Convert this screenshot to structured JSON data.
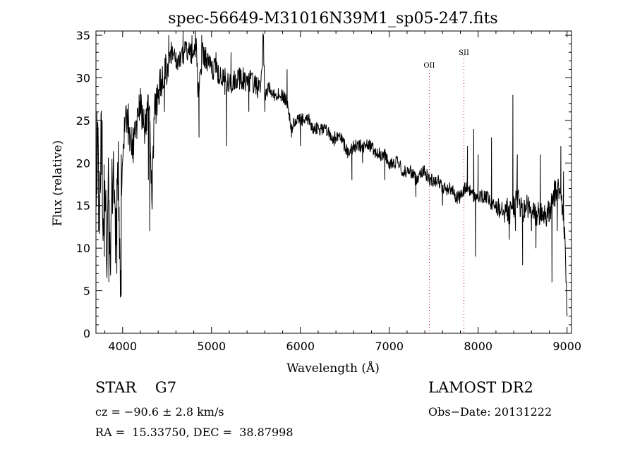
{
  "chart_data": {
    "type": "line",
    "title": "spec-56649-M31016N39M1_sp05-247.fits",
    "xlabel": "Wavelength (Å)",
    "ylabel": "Flux (relative)",
    "xlim": [
      3700,
      9050
    ],
    "ylim": [
      0,
      35.5
    ],
    "xticks": [
      4000,
      5000,
      6000,
      7000,
      8000,
      9000
    ],
    "yticks": [
      0,
      5,
      10,
      15,
      20,
      25,
      30,
      35
    ],
    "grid": false,
    "series": [
      {
        "color": "#000000",
        "anchors": [
          [
            3700,
            16
          ],
          [
            3720,
            22
          ],
          [
            3740,
            13
          ],
          [
            3760,
            25
          ],
          [
            3780,
            12
          ],
          [
            3800,
            19
          ],
          [
            3820,
            8
          ],
          [
            3840,
            18
          ],
          [
            3860,
            9
          ],
          [
            3880,
            17
          ],
          [
            3900,
            20
          ],
          [
            3920,
            12
          ],
          [
            3950,
            20
          ],
          [
            3980,
            5
          ],
          [
            4000,
            22
          ],
          [
            4030,
            25
          ],
          [
            4060,
            24
          ],
          [
            4100,
            22
          ],
          [
            4150,
            24
          ],
          [
            4200,
            27
          ],
          [
            4250,
            24
          ],
          [
            4300,
            27
          ],
          [
            4330,
            16
          ],
          [
            4360,
            26
          ],
          [
            4400,
            28
          ],
          [
            4450,
            30
          ],
          [
            4500,
            31
          ],
          [
            4550,
            33
          ],
          [
            4600,
            32
          ],
          [
            4650,
            32
          ],
          [
            4700,
            33
          ],
          [
            4750,
            33
          ],
          [
            4800,
            33
          ],
          [
            4830,
            34
          ],
          [
            4850,
            28
          ],
          [
            4900,
            33
          ],
          [
            4950,
            32
          ],
          [
            5000,
            31
          ],
          [
            5050,
            31
          ],
          [
            5100,
            30
          ],
          [
            5150,
            30
          ],
          [
            5200,
            29
          ],
          [
            5250,
            30
          ],
          [
            5300,
            30
          ],
          [
            5350,
            30
          ],
          [
            5400,
            29
          ],
          [
            5450,
            30
          ],
          [
            5500,
            29
          ],
          [
            5550,
            29
          ],
          [
            5580,
            34
          ],
          [
            5600,
            28
          ],
          [
            5650,
            29
          ],
          [
            5700,
            28
          ],
          [
            5750,
            28
          ],
          [
            5800,
            28
          ],
          [
            5850,
            27
          ],
          [
            5900,
            24
          ],
          [
            5950,
            25
          ],
          [
            6000,
            25
          ],
          [
            6050,
            25
          ],
          [
            6100,
            25
          ],
          [
            6150,
            24
          ],
          [
            6200,
            24
          ],
          [
            6250,
            24
          ],
          [
            6300,
            24
          ],
          [
            6350,
            23
          ],
          [
            6400,
            23
          ],
          [
            6450,
            23
          ],
          [
            6500,
            22
          ],
          [
            6550,
            21
          ],
          [
            6600,
            22
          ],
          [
            6650,
            22
          ],
          [
            6700,
            22
          ],
          [
            6750,
            22
          ],
          [
            6800,
            22
          ],
          [
            6850,
            21
          ],
          [
            6900,
            21
          ],
          [
            6950,
            21
          ],
          [
            7000,
            20
          ],
          [
            7050,
            20
          ],
          [
            7100,
            20
          ],
          [
            7150,
            19
          ],
          [
            7200,
            19
          ],
          [
            7250,
            19
          ],
          [
            7300,
            18
          ],
          [
            7350,
            19
          ],
          [
            7400,
            19
          ],
          [
            7450,
            18
          ],
          [
            7500,
            18
          ],
          [
            7550,
            18
          ],
          [
            7600,
            17
          ],
          [
            7650,
            17
          ],
          [
            7700,
            17
          ],
          [
            7750,
            16
          ],
          [
            7800,
            16
          ],
          [
            7850,
            17
          ],
          [
            7900,
            17
          ],
          [
            7950,
            16
          ],
          [
            8000,
            16
          ],
          [
            8050,
            16
          ],
          [
            8100,
            16
          ],
          [
            8150,
            15
          ],
          [
            8200,
            15
          ],
          [
            8250,
            15
          ],
          [
            8300,
            15
          ],
          [
            8350,
            14
          ],
          [
            8400,
            15
          ],
          [
            8450,
            16
          ],
          [
            8500,
            14
          ],
          [
            8550,
            15
          ],
          [
            8600,
            14
          ],
          [
            8650,
            14
          ],
          [
            8700,
            14
          ],
          [
            8750,
            14
          ],
          [
            8800,
            14
          ],
          [
            8850,
            16
          ],
          [
            8900,
            17
          ],
          [
            8950,
            15
          ],
          [
            8980,
            10
          ],
          [
            9000,
            3
          ]
        ],
        "spikes": [
          [
            3710,
            26
          ],
          [
            3730,
            12
          ],
          [
            3770,
            25
          ],
          [
            3795,
            9
          ],
          [
            3845,
            6
          ],
          [
            3885,
            14
          ],
          [
            3935,
            7
          ],
          [
            3975,
            4.2
          ],
          [
            3985,
            21
          ],
          [
            4065,
            27
          ],
          [
            4120,
            20
          ],
          [
            4185,
            28
          ],
          [
            4290,
            18
          ],
          [
            4305,
            12
          ],
          [
            4420,
            31
          ],
          [
            4470,
            26
          ],
          [
            4520,
            35
          ],
          [
            4600,
            33
          ],
          [
            4680,
            35.5
          ],
          [
            4720,
            34
          ],
          [
            4780,
            35
          ],
          [
            4820,
            35.5
          ],
          [
            4860,
            23
          ],
          [
            4890,
            35
          ],
          [
            5050,
            33
          ],
          [
            5150,
            28
          ],
          [
            5170,
            22
          ],
          [
            5220,
            33
          ],
          [
            5420,
            26
          ],
          [
            5585,
            35
          ],
          [
            5600,
            26
          ],
          [
            5850,
            31
          ],
          [
            5900,
            23
          ],
          [
            6000,
            22
          ],
          [
            6380,
            22
          ],
          [
            6580,
            18
          ],
          [
            6700,
            20
          ],
          [
            6950,
            18
          ],
          [
            7300,
            16
          ],
          [
            7600,
            15
          ],
          [
            7880,
            22
          ],
          [
            7950,
            24
          ],
          [
            7970,
            9
          ],
          [
            8000,
            21
          ],
          [
            8150,
            23
          ],
          [
            8300,
            13
          ],
          [
            8350,
            11
          ],
          [
            8390,
            28
          ],
          [
            8420,
            12
          ],
          [
            8440,
            21
          ],
          [
            8500,
            8
          ],
          [
            8600,
            12
          ],
          [
            8650,
            10
          ],
          [
            8700,
            21
          ],
          [
            8830,
            6
          ],
          [
            8860,
            18
          ],
          [
            8890,
            12
          ],
          [
            8930,
            22
          ],
          [
            8960,
            19
          ],
          [
            9000,
            2
          ]
        ]
      }
    ],
    "lines": [
      {
        "label": "OII",
        "x": 7450
      },
      {
        "label": "SII",
        "x": 7840
      }
    ]
  },
  "footer": {
    "class": "STAR    G7",
    "survey": "LAMOST DR2",
    "cz": "cz = −90.6 ± 2.8 km/s",
    "obs_date": "Obs−Date: 20131222",
    "radec": "RA =  15.33750, DEC =  38.87998"
  }
}
